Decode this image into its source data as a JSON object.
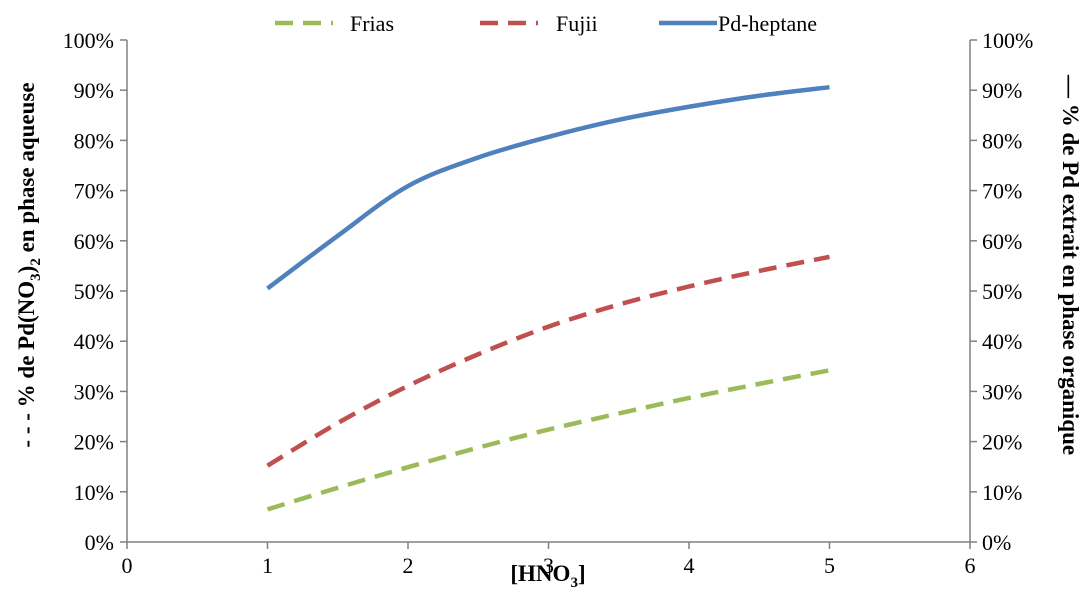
{
  "chart_data": {
    "type": "line",
    "title": "",
    "xlabel_main": "[HNO",
    "xlabel_sub": "3",
    "xlabel_close": "]",
    "ylabel_left_prefix": "- - - % de Pd(NO",
    "ylabel_left_sub": "3",
    "ylabel_left_suffix": ")",
    "ylabel_left_sub2": "2",
    "ylabel_left_end": " en phase aqueuse",
    "ylabel_right": "— % de Pd extrait en phase organique",
    "xlim": [
      0,
      6
    ],
    "ylim": [
      0,
      100
    ],
    "xticks": [
      "0",
      "1",
      "2",
      "3",
      "4",
      "5",
      "6"
    ],
    "yticks_left": [
      "0%",
      "10%",
      "20%",
      "30%",
      "40%",
      "50%",
      "60%",
      "70%",
      "80%",
      "90%",
      "100%"
    ],
    "yticks_right": [
      "0%",
      "10%",
      "20%",
      "30%",
      "40%",
      "50%",
      "60%",
      "70%",
      "80%",
      "90%",
      "100%"
    ],
    "grid": false,
    "legend_position": "top",
    "series": [
      {
        "name": "Frias",
        "axis": "left",
        "style": "dashed",
        "color": "#9BBB59",
        "x": [
          1,
          1.5,
          2,
          2.5,
          3,
          3.5,
          4,
          4.5,
          5
        ],
        "y": [
          6.5,
          10.8,
          14.9,
          18.8,
          22.4,
          25.6,
          28.7,
          31.5,
          34.2
        ]
      },
      {
        "name": "Fujii",
        "axis": "left",
        "style": "dashed",
        "color": "#C0504D",
        "x": [
          1,
          1.5,
          2,
          2.5,
          3,
          3.5,
          4,
          4.5,
          5
        ],
        "y": [
          15.2,
          23.7,
          31.1,
          37.4,
          42.9,
          47.3,
          50.9,
          54.0,
          56.8
        ]
      },
      {
        "name": "Pd-heptane",
        "axis": "right",
        "style": "solid",
        "color": "#4F81BD",
        "x": [
          1,
          1.5,
          2,
          2.5,
          3,
          3.5,
          4,
          4.5,
          5
        ],
        "y": [
          50.5,
          61.0,
          70.9,
          76.6,
          80.7,
          84.1,
          86.7,
          88.9,
          90.6
        ]
      }
    ]
  }
}
